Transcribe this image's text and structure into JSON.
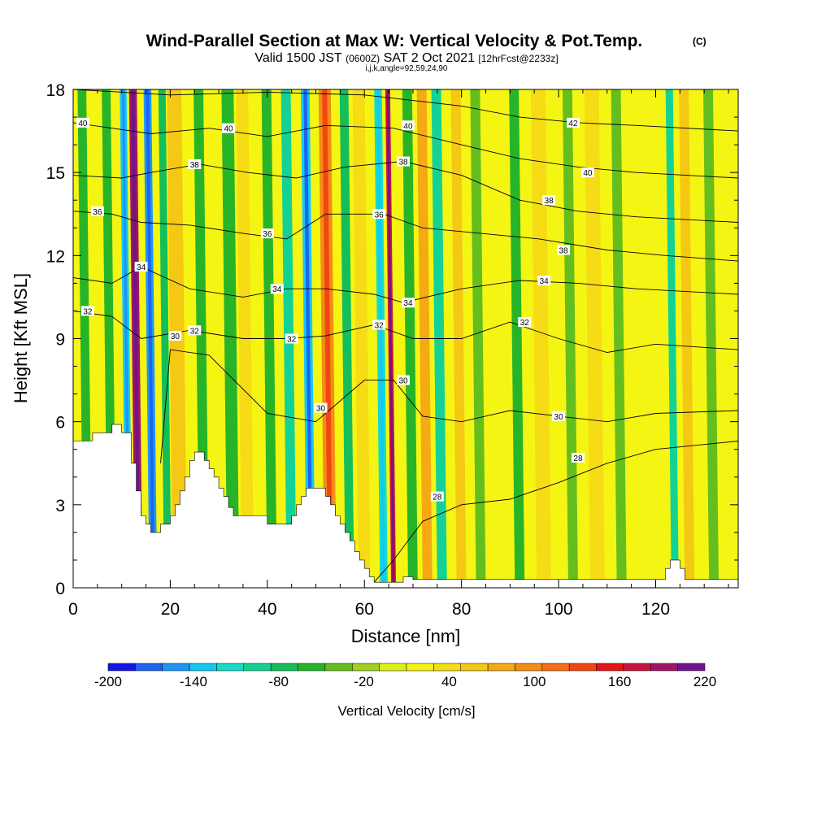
{
  "chart_data": {
    "type": "heatmap",
    "title_main": "Wind-Parallel Section at Max W: Vertical Velocity & Pot.Temp.",
    "title_mark": "(C)",
    "subtitle": {
      "part1": "Valid 1500 JST",
      "part2": "(0600Z)",
      "part3": "SAT 2 Oct 2021",
      "part4": "[12hrFcst@2233z]"
    },
    "params_line": "i,j,k,angle=92,59,24,90",
    "xlabel": "Distance [nm]",
    "ylabel": "Height [Kft MSL]",
    "xlim": [
      0,
      137
    ],
    "ylim": [
      0,
      18
    ],
    "x_ticks": [
      "0",
      "20",
      "40",
      "60",
      "80",
      "100",
      "120"
    ],
    "y_ticks": [
      "0",
      "3",
      "6",
      "9",
      "12",
      "15",
      "18"
    ],
    "colorbar": {
      "label": "Vertical Velocity [cm/s]",
      "tick_labels": [
        "-200",
        "-140",
        "-80",
        "-20",
        "40",
        "100",
        "160",
        "220"
      ],
      "colors": [
        "#1414e6",
        "#1e64f0",
        "#1e96f5",
        "#14c8f5",
        "#14dcc8",
        "#14d296",
        "#14be5a",
        "#28b428",
        "#64be1e",
        "#a0d21e",
        "#dcf014",
        "#f5f514",
        "#f5dc14",
        "#f5c814",
        "#f5aa14",
        "#f58c14",
        "#f56e14",
        "#f04614",
        "#e61414",
        "#c8143c",
        "#a01464",
        "#6e148c"
      ]
    },
    "terrain_kft": [
      [
        0,
        5.3
      ],
      [
        4,
        5.3
      ],
      [
        4,
        5.6
      ],
      [
        8,
        5.6
      ],
      [
        8,
        5.9
      ],
      [
        10,
        5.9
      ],
      [
        10,
        5.6
      ],
      [
        12,
        5.6
      ],
      [
        12,
        4.5
      ],
      [
        13,
        4.5
      ],
      [
        13,
        3.5
      ],
      [
        14,
        3.5
      ],
      [
        14,
        2.6
      ],
      [
        15,
        2.6
      ],
      [
        15,
        2.3
      ],
      [
        16,
        2.3
      ],
      [
        16,
        2.0
      ],
      [
        18,
        2.0
      ],
      [
        18,
        2.3
      ],
      [
        20,
        2.3
      ],
      [
        20,
        2.6
      ],
      [
        21,
        2.6
      ],
      [
        21,
        3.0
      ],
      [
        22,
        3.0
      ],
      [
        22,
        3.5
      ],
      [
        23,
        3.5
      ],
      [
        23,
        4.0
      ],
      [
        24,
        4.0
      ],
      [
        24,
        4.6
      ],
      [
        25,
        4.6
      ],
      [
        25,
        4.9
      ],
      [
        27,
        4.9
      ],
      [
        27,
        4.6
      ],
      [
        28,
        4.6
      ],
      [
        28,
        4.3
      ],
      [
        29,
        4.3
      ],
      [
        29,
        4.0
      ],
      [
        30,
        4.0
      ],
      [
        30,
        3.6
      ],
      [
        31,
        3.6
      ],
      [
        31,
        3.3
      ],
      [
        32,
        3.3
      ],
      [
        32,
        2.9
      ],
      [
        33,
        2.9
      ],
      [
        33,
        2.6
      ],
      [
        40,
        2.6
      ],
      [
        40,
        2.3
      ],
      [
        45,
        2.3
      ],
      [
        45,
        2.6
      ],
      [
        46,
        2.6
      ],
      [
        46,
        3.0
      ],
      [
        47,
        3.0
      ],
      [
        47,
        3.3
      ],
      [
        48,
        3.3
      ],
      [
        48,
        3.6
      ],
      [
        52,
        3.6
      ],
      [
        52,
        3.3
      ],
      [
        53,
        3.3
      ],
      [
        53,
        3.0
      ],
      [
        54,
        3.0
      ],
      [
        54,
        2.6
      ],
      [
        55,
        2.6
      ],
      [
        55,
        2.3
      ],
      [
        56,
        2.3
      ],
      [
        56,
        2.0
      ],
      [
        57,
        2.0
      ],
      [
        57,
        1.7
      ],
      [
        58,
        1.7
      ],
      [
        58,
        1.3
      ],
      [
        59,
        1.3
      ],
      [
        59,
        1.0
      ],
      [
        60,
        1.0
      ],
      [
        60,
        0.7
      ],
      [
        61,
        0.7
      ],
      [
        61,
        0.4
      ],
      [
        62,
        0.4
      ],
      [
        62,
        0.2
      ],
      [
        68,
        0.2
      ],
      [
        68,
        0.4
      ],
      [
        70,
        0.4
      ],
      [
        70,
        0.3
      ],
      [
        122,
        0.3
      ],
      [
        122,
        0.7
      ],
      [
        123,
        0.7
      ],
      [
        123,
        1.0
      ],
      [
        125,
        1.0
      ],
      [
        125,
        0.7
      ],
      [
        126,
        0.7
      ],
      [
        126,
        0.3
      ],
      [
        137,
        0.3
      ]
    ],
    "w_bands": [
      {
        "x": 3,
        "value": -50,
        "width": 1.8
      },
      {
        "x": 8,
        "value": -60,
        "width": 1.8
      },
      {
        "x": 11.5,
        "value": -130,
        "width": 1.4
      },
      {
        "x": 13.5,
        "value": 200,
        "width": 1.6
      },
      {
        "x": 16.5,
        "value": -150,
        "width": 1.6
      },
      {
        "x": 19.5,
        "value": -80,
        "width": 1.5
      },
      {
        "x": 22,
        "value": 60,
        "width": 3.0
      },
      {
        "x": 27,
        "value": -60,
        "width": 2.0
      },
      {
        "x": 33,
        "value": -50,
        "width": 2.5
      },
      {
        "x": 36,
        "value": 40,
        "width": 2.5
      },
      {
        "x": 41,
        "value": -50,
        "width": 2.0
      },
      {
        "x": 45,
        "value": -90,
        "width": 2.0
      },
      {
        "x": 49,
        "value": -140,
        "width": 1.8
      },
      {
        "x": 53,
        "value": 110,
        "width": 2.5
      },
      {
        "x": 57,
        "value": -80,
        "width": 1.8
      },
      {
        "x": 60,
        "value": 40,
        "width": 2.5
      },
      {
        "x": 64,
        "value": -110,
        "width": 1.6
      },
      {
        "x": 66,
        "value": 190,
        "width": 1.0
      },
      {
        "x": 70,
        "value": -50,
        "width": 2.0
      },
      {
        "x": 73,
        "value": 90,
        "width": 2.0
      },
      {
        "x": 76,
        "value": -90,
        "width": 2.0
      },
      {
        "x": 80,
        "value": 70,
        "width": 2.0
      },
      {
        "x": 84,
        "value": -40,
        "width": 2.0
      },
      {
        "x": 88,
        "value": 30,
        "width": 2.0
      },
      {
        "x": 92,
        "value": -50,
        "width": 2.0
      },
      {
        "x": 97,
        "value": 50,
        "width": 3.0
      },
      {
        "x": 103,
        "value": -40,
        "width": 2.0
      },
      {
        "x": 108,
        "value": 40,
        "width": 3.0
      },
      {
        "x": 113,
        "value": -40,
        "width": 2.0
      },
      {
        "x": 118,
        "value": 30,
        "width": 2.0
      },
      {
        "x": 124,
        "value": -90,
        "width": 1.5
      },
      {
        "x": 127,
        "value": 70,
        "width": 2.0
      },
      {
        "x": 132,
        "value": -40,
        "width": 2.0
      }
    ],
    "theta_levels": [
      28,
      30,
      32,
      34,
      36,
      38,
      40,
      42
    ],
    "theta_contours": [
      {
        "theta": 28,
        "points": [
          [
            62,
            0.2
          ],
          [
            66,
            1.0
          ],
          [
            72,
            2.4
          ],
          [
            80,
            3.0
          ],
          [
            90,
            3.2
          ],
          [
            100,
            3.8
          ],
          [
            110,
            4.5
          ],
          [
            120,
            5.0
          ],
          [
            137,
            5.3
          ]
        ]
      },
      {
        "theta": 30,
        "points": [
          [
            18,
            4.5
          ],
          [
            20,
            8.6
          ],
          [
            28,
            8.4
          ],
          [
            40,
            6.3
          ],
          [
            50,
            6.0
          ],
          [
            60,
            7.5
          ],
          [
            66,
            7.5
          ],
          [
            72,
            6.2
          ],
          [
            80,
            6.0
          ],
          [
            90,
            6.4
          ],
          [
            100,
            6.2
          ],
          [
            110,
            6.0
          ],
          [
            120,
            6.3
          ],
          [
            137,
            6.4
          ]
        ]
      },
      {
        "theta": 32,
        "points": [
          [
            0,
            10.0
          ],
          [
            8,
            9.8
          ],
          [
            14,
            9.0
          ],
          [
            24,
            9.3
          ],
          [
            35,
            9.0
          ],
          [
            44,
            9.0
          ],
          [
            52,
            9.1
          ],
          [
            62,
            9.5
          ],
          [
            70,
            9.0
          ],
          [
            80,
            9.0
          ],
          [
            90,
            9.6
          ],
          [
            100,
            9.0
          ],
          [
            110,
            8.5
          ],
          [
            120,
            8.8
          ],
          [
            137,
            8.6
          ]
        ]
      },
      {
        "theta": 34,
        "points": [
          [
            0,
            11.2
          ],
          [
            8,
            11.0
          ],
          [
            14,
            11.6
          ],
          [
            24,
            10.8
          ],
          [
            35,
            10.5
          ],
          [
            44,
            10.8
          ],
          [
            52,
            10.8
          ],
          [
            62,
            10.6
          ],
          [
            68,
            10.3
          ],
          [
            80,
            10.8
          ],
          [
            92,
            11.1
          ],
          [
            104,
            11.0
          ],
          [
            116,
            10.8
          ],
          [
            137,
            10.6
          ]
        ]
      },
      {
        "theta": 36,
        "points": [
          [
            0,
            13.6
          ],
          [
            8,
            13.5
          ],
          [
            14,
            13.2
          ],
          [
            24,
            13.1
          ],
          [
            35,
            12.8
          ],
          [
            44,
            12.6
          ],
          [
            52,
            13.5
          ],
          [
            64,
            13.5
          ],
          [
            72,
            13.0
          ],
          [
            84,
            12.8
          ],
          [
            96,
            12.6
          ],
          [
            110,
            12.2
          ],
          [
            122,
            12.0
          ],
          [
            137,
            11.8
          ]
        ]
      },
      {
        "theta": 38,
        "points": [
          [
            0,
            14.9
          ],
          [
            10,
            14.8
          ],
          [
            16,
            15.0
          ],
          [
            26,
            15.3
          ],
          [
            36,
            15.0
          ],
          [
            46,
            14.8
          ],
          [
            56,
            15.2
          ],
          [
            68,
            15.4
          ],
          [
            80,
            14.9
          ],
          [
            92,
            14.0
          ],
          [
            104,
            13.6
          ],
          [
            116,
            13.4
          ],
          [
            137,
            13.2
          ]
        ]
      },
      {
        "theta": 40,
        "points": [
          [
            0,
            16.8
          ],
          [
            8,
            16.6
          ],
          [
            16,
            16.4
          ],
          [
            28,
            16.6
          ],
          [
            40,
            16.3
          ],
          [
            52,
            16.7
          ],
          [
            66,
            16.6
          ],
          [
            80,
            16.0
          ],
          [
            92,
            15.5
          ],
          [
            104,
            15.2
          ],
          [
            116,
            15.0
          ],
          [
            137,
            14.8
          ]
        ]
      },
      {
        "theta": 42,
        "points": [
          [
            0,
            18.0
          ],
          [
            20,
            17.8
          ],
          [
            40,
            17.9
          ],
          [
            60,
            17.8
          ],
          [
            80,
            17.4
          ],
          [
            92,
            17.0
          ],
          [
            104,
            16.8
          ],
          [
            116,
            16.7
          ],
          [
            137,
            16.5
          ]
        ]
      }
    ],
    "contour_labels": [
      {
        "text": "40",
        "x": 2,
        "y": 16.8
      },
      {
        "text": "40",
        "x": 32,
        "y": 16.6
      },
      {
        "text": "40",
        "x": 69,
        "y": 16.7
      },
      {
        "text": "42",
        "x": 103,
        "y": 16.8
      },
      {
        "text": "40",
        "x": 106,
        "y": 15.0
      },
      {
        "text": "38",
        "x": 25,
        "y": 15.3
      },
      {
        "text": "38",
        "x": 68,
        "y": 15.4
      },
      {
        "text": "38",
        "x": 98,
        "y": 14.0
      },
      {
        "text": "38",
        "x": 101,
        "y": 12.2
      },
      {
        "text": "36",
        "x": 5,
        "y": 13.6
      },
      {
        "text": "36",
        "x": 40,
        "y": 12.8
      },
      {
        "text": "36",
        "x": 63,
        "y": 13.5
      },
      {
        "text": "34",
        "x": 14,
        "y": 11.6
      },
      {
        "text": "34",
        "x": 42,
        "y": 10.8
      },
      {
        "text": "34",
        "x": 69,
        "y": 10.3
      },
      {
        "text": "34",
        "x": 97,
        "y": 11.1
      },
      {
        "text": "32",
        "x": 3,
        "y": 10.0
      },
      {
        "text": "32",
        "x": 25,
        "y": 9.3
      },
      {
        "text": "32",
        "x": 45,
        "y": 9.0
      },
      {
        "text": "32",
        "x": 63,
        "y": 9.5
      },
      {
        "text": "32",
        "x": 93,
        "y": 9.6
      },
      {
        "text": "30",
        "x": 21,
        "y": 9.1
      },
      {
        "text": "30",
        "x": 51,
        "y": 6.5
      },
      {
        "text": "30",
        "x": 68,
        "y": 7.5
      },
      {
        "text": "30",
        "x": 100,
        "y": 6.2
      },
      {
        "text": "28",
        "x": 75,
        "y": 3.3
      },
      {
        "text": "28",
        "x": 104,
        "y": 4.7
      }
    ]
  }
}
